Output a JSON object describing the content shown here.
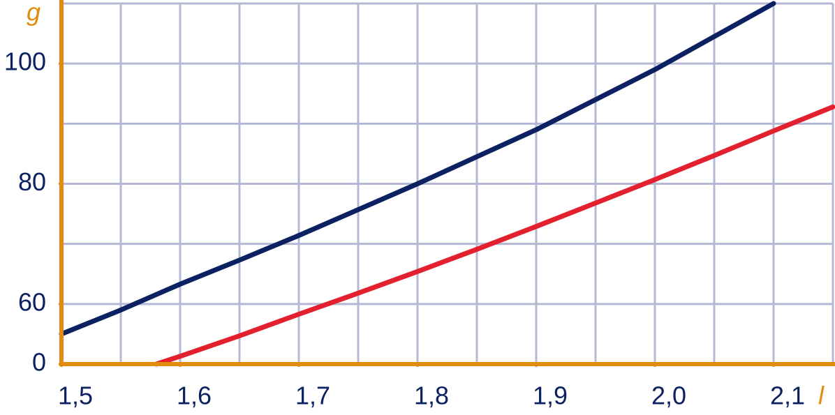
{
  "chart_data": {
    "type": "line",
    "y_label": "g",
    "x_label": "l",
    "xlim": [
      1.5,
      2.15
    ],
    "ylim": [
      50,
      110
    ],
    "xticks": [
      {
        "value": 1.5,
        "label": "1,5"
      },
      {
        "value": 1.6,
        "label": "1,6"
      },
      {
        "value": 1.7,
        "label": "1,7"
      },
      {
        "value": 1.8,
        "label": "1,8"
      },
      {
        "value": 1.9,
        "label": "1,9"
      },
      {
        "value": 2.0,
        "label": "2,0"
      },
      {
        "value": 2.1,
        "label": "2,1"
      }
    ],
    "yticks": [
      {
        "value": 50,
        "label": "0"
      },
      60,
      80,
      100
    ],
    "xgrid": [
      1.55,
      1.6,
      1.65,
      1.7,
      1.75,
      1.8,
      1.85,
      1.9,
      1.95,
      2.0,
      2.05,
      2.1,
      2.15
    ],
    "ygrid": [
      60,
      70,
      80,
      90,
      100,
      110
    ],
    "grid": true,
    "grid_color": "#b4b8d4",
    "axis_color": "#e38b0c",
    "series": [
      {
        "color": "#0b2161",
        "x": [
          1.5,
          1.55,
          1.6,
          1.65,
          1.7,
          1.75,
          1.8,
          1.85,
          1.9,
          1.95,
          2.0,
          2.05,
          2.1
        ],
        "values": [
          55,
          59,
          63.3,
          67.3,
          71.4,
          75.7,
          80,
          84.5,
          89,
          94,
          99,
          104.5,
          110
        ]
      },
      {
        "color": "#e3202e",
        "x": [
          1.58,
          1.6,
          1.65,
          1.7,
          1.75,
          1.8,
          1.85,
          1.9,
          1.95,
          2.0,
          2.05,
          2.1,
          2.15
        ],
        "values": [
          50,
          51.3,
          54.7,
          58.3,
          61.8,
          65.4,
          69.1,
          72.9,
          76.8,
          80.7,
          84.7,
          88.8,
          92.8
        ]
      }
    ]
  }
}
